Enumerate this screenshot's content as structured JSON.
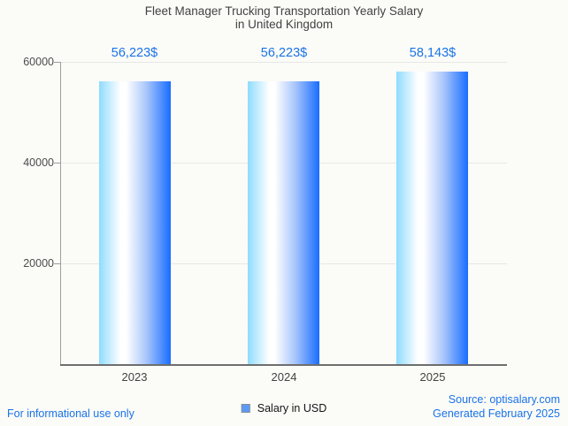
{
  "title": {
    "line1": "Fleet Manager Trucking Transportation Yearly Salary",
    "line2": "in United Kingdom"
  },
  "chart_data": {
    "type": "bar",
    "title": "Fleet Manager Trucking Transportation Yearly Salary in United Kingdom",
    "categories": [
      "2023",
      "2024",
      "2025"
    ],
    "values": [
      56223,
      56223,
      58143
    ],
    "value_labels": [
      "56,223$",
      "56,223$",
      "58,143$"
    ],
    "series_name": "Salary in USD",
    "ylim": [
      0,
      60000
    ],
    "yticks": [
      20000,
      40000,
      60000
    ],
    "ytick_labels": [
      "20000",
      "40000",
      "60000"
    ],
    "grid": true,
    "legend_position": "bottom-center"
  },
  "legend": {
    "label": "Salary in USD"
  },
  "footer": {
    "left": "For informational use only",
    "source": "Source: optisalary.com",
    "generated": "Generated February 2025"
  },
  "colors": {
    "accent_blue": "#1a73e8",
    "bar_gradient_left": "#8fdcfe",
    "bar_gradient_mid": "#ffffff",
    "bar_gradient_right": "#186dff",
    "legend_marker_fill": "#5b9bf8",
    "grid_line": "#e7e7e5",
    "axis_line": "#6e6e6e",
    "text_dark": "#424242",
    "background": "#fbfbf8"
  }
}
